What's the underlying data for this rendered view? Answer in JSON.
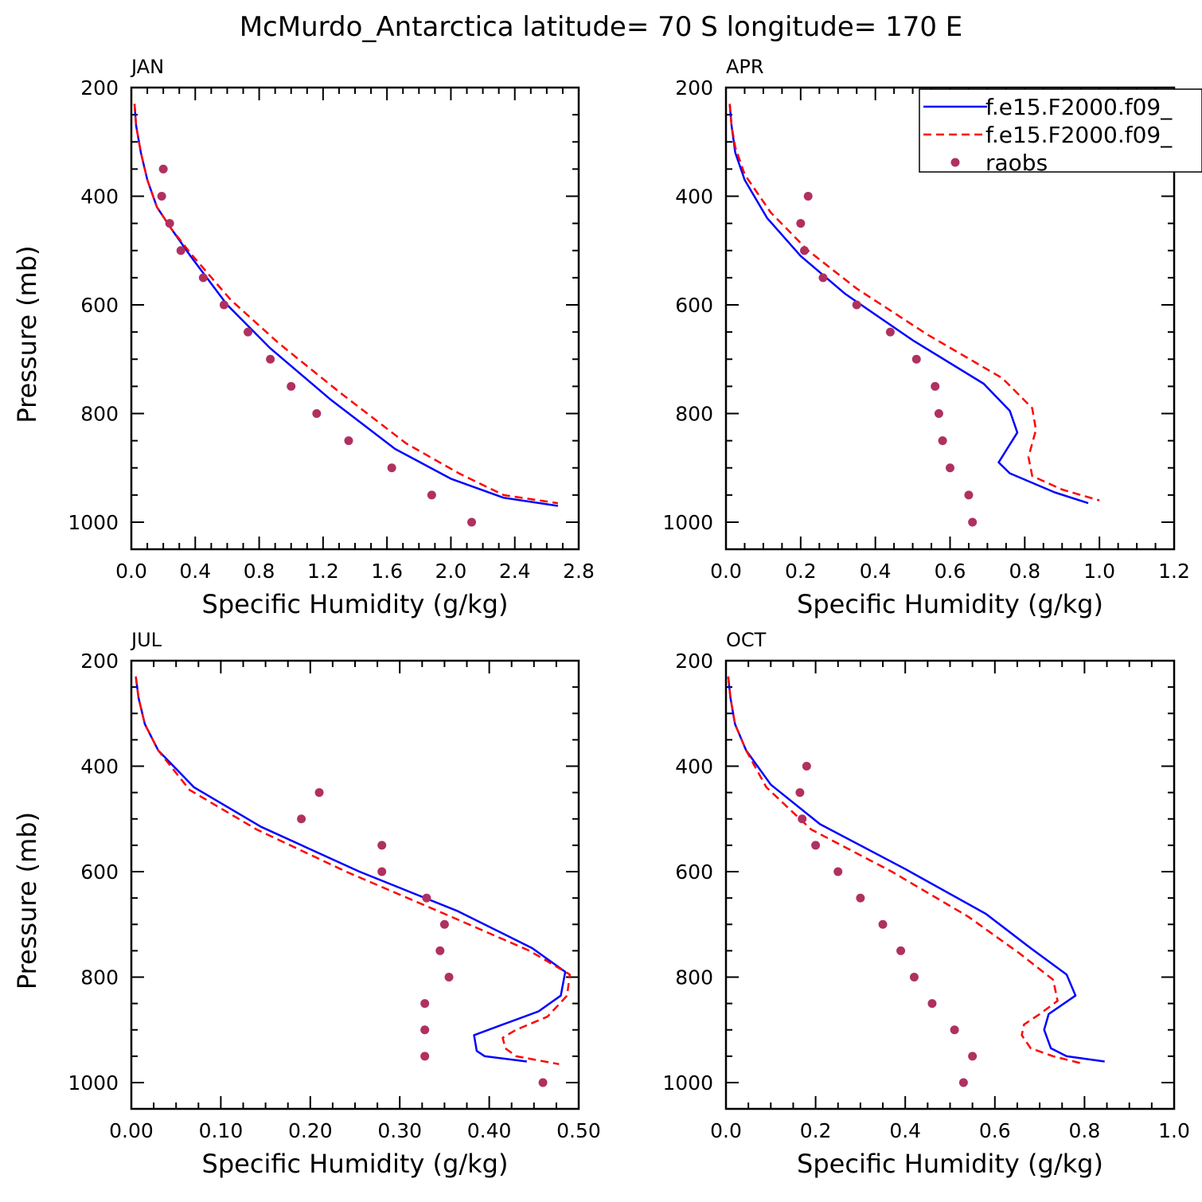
{
  "title": "McMurdo_Antarctica  latitude= 70 S longitude= 170 E",
  "legend": {
    "position": "top-right",
    "entries": [
      {
        "label": "f.e15.F2000.f09_",
        "style": "solid",
        "color": "#0000ff"
      },
      {
        "label": "f.e15.F2000.f09_",
        "style": "dashed",
        "color": "#ff0000"
      },
      {
        "label": "raobs",
        "style": "dot",
        "color": "#b03060"
      }
    ]
  },
  "chart_data": [
    {
      "type": "line",
      "panel": "JAN",
      "xlabel": "Specific Humidity (g/kg)",
      "ylabel": "Pressure (mb)",
      "xlim": [
        0,
        2.8
      ],
      "ylim": [
        200,
        1025
      ],
      "xticks": [
        "0.0",
        "0.4",
        "0.8",
        "1.2",
        "1.6",
        "2.0",
        "2.4",
        "2.8"
      ],
      "xtick_values": [
        0,
        0.4,
        0.8,
        1.2,
        1.6,
        2.0,
        2.4,
        2.8
      ],
      "yticks": [
        "200",
        "400",
        "600",
        "800",
        "1000"
      ],
      "ytick_values": [
        200,
        400,
        600,
        800,
        1000
      ],
      "series": [
        {
          "name": "f.e15.F2000.f09_",
          "style": "solid",
          "color": "#0000ff",
          "points": [
            [
              0.02,
              230
            ],
            [
              0.03,
              270
            ],
            [
              0.06,
              320
            ],
            [
              0.1,
              370
            ],
            [
              0.16,
              420
            ],
            [
              0.25,
              460
            ],
            [
              0.37,
              510
            ],
            [
              0.6,
              600
            ],
            [
              0.87,
              680
            ],
            [
              1.25,
              775
            ],
            [
              1.65,
              865
            ],
            [
              2.0,
              920
            ],
            [
              2.33,
              955
            ],
            [
              2.67,
              970
            ]
          ]
        },
        {
          "name": "f.e15.F2000.f09_",
          "style": "dashed",
          "color": "#ff0000",
          "points": [
            [
              0.02,
              230
            ],
            [
              0.03,
              270
            ],
            [
              0.06,
              320
            ],
            [
              0.1,
              370
            ],
            [
              0.16,
              420
            ],
            [
              0.25,
              460
            ],
            [
              0.37,
              505
            ],
            [
              0.62,
              590
            ],
            [
              0.92,
              670
            ],
            [
              1.3,
              760
            ],
            [
              1.72,
              855
            ],
            [
              2.05,
              910
            ],
            [
              2.33,
              950
            ],
            [
              2.67,
              965
            ]
          ]
        },
        {
          "name": "raobs",
          "style": "dot",
          "color": "#b03060",
          "points": [
            [
              0.2,
              350
            ],
            [
              0.19,
              400
            ],
            [
              0.24,
              450
            ],
            [
              0.31,
              500
            ],
            [
              0.45,
              550
            ],
            [
              0.58,
              600
            ],
            [
              0.73,
              650
            ],
            [
              0.87,
              700
            ],
            [
              1.0,
              750
            ],
            [
              1.16,
              800
            ],
            [
              1.36,
              850
            ],
            [
              1.63,
              900
            ],
            [
              1.88,
              950
            ],
            [
              2.13,
              1000
            ]
          ]
        }
      ]
    },
    {
      "type": "line",
      "panel": "APR",
      "xlabel": "Specific Humidity (g/kg)",
      "ylabel": "",
      "xlim": [
        0,
        1.2
      ],
      "ylim": [
        200,
        1025
      ],
      "xticks": [
        "0.0",
        "0.2",
        "0.4",
        "0.6",
        "0.8",
        "1.0",
        "1.2"
      ],
      "xtick_values": [
        0,
        0.2,
        0.4,
        0.6,
        0.8,
        1.0,
        1.2
      ],
      "yticks": [
        "200",
        "400",
        "600",
        "800",
        "1000"
      ],
      "ytick_values": [
        200,
        400,
        600,
        800,
        1000
      ],
      "series": [
        {
          "name": "f.e15.F2000.f09_",
          "style": "solid",
          "color": "#0000ff",
          "points": [
            [
              0.01,
              230
            ],
            [
              0.015,
              270
            ],
            [
              0.025,
              320
            ],
            [
              0.05,
              370
            ],
            [
              0.11,
              440
            ],
            [
              0.2,
              510
            ],
            [
              0.32,
              580
            ],
            [
              0.5,
              665
            ],
            [
              0.69,
              745
            ],
            [
              0.76,
              795
            ],
            [
              0.78,
              835
            ],
            [
              0.73,
              890
            ],
            [
              0.76,
              910
            ],
            [
              0.88,
              945
            ],
            [
              0.97,
              965
            ]
          ]
        },
        {
          "name": "f.e15.F2000.f09_",
          "style": "dashed",
          "color": "#ff0000",
          "points": [
            [
              0.01,
              230
            ],
            [
              0.015,
              270
            ],
            [
              0.025,
              310
            ],
            [
              0.05,
              360
            ],
            [
              0.12,
              430
            ],
            [
              0.22,
              500
            ],
            [
              0.35,
              570
            ],
            [
              0.54,
              655
            ],
            [
              0.74,
              735
            ],
            [
              0.82,
              790
            ],
            [
              0.83,
              830
            ],
            [
              0.81,
              880
            ],
            [
              0.82,
              915
            ],
            [
              0.9,
              940
            ],
            [
              1.0,
              960
            ]
          ]
        },
        {
          "name": "raobs",
          "style": "dot",
          "color": "#b03060",
          "points": [
            [
              0.22,
              400
            ],
            [
              0.2,
              450
            ],
            [
              0.21,
              500
            ],
            [
              0.26,
              550
            ],
            [
              0.35,
              600
            ],
            [
              0.44,
              650
            ],
            [
              0.51,
              700
            ],
            [
              0.56,
              750
            ],
            [
              0.57,
              800
            ],
            [
              0.58,
              850
            ],
            [
              0.6,
              900
            ],
            [
              0.65,
              950
            ],
            [
              0.66,
              1000
            ]
          ]
        }
      ]
    },
    {
      "type": "line",
      "panel": "JUL",
      "xlabel": "Specific Humidity (g/kg)",
      "ylabel": "Pressure (mb)",
      "xlim": [
        0,
        0.5
      ],
      "ylim": [
        200,
        1025
      ],
      "xticks": [
        "0.00",
        "0.10",
        "0.20",
        "0.30",
        "0.40",
        "0.50"
      ],
      "xtick_values": [
        0,
        0.1,
        0.2,
        0.3,
        0.4,
        0.5
      ],
      "yticks": [
        "200",
        "400",
        "600",
        "800",
        "1000"
      ],
      "ytick_values": [
        200,
        400,
        600,
        800,
        1000
      ],
      "series": [
        {
          "name": "f.e15.F2000.f09_",
          "style": "solid",
          "color": "#0000ff",
          "points": [
            [
              0.005,
              230
            ],
            [
              0.008,
              270
            ],
            [
              0.015,
              320
            ],
            [
              0.03,
              370
            ],
            [
              0.07,
              440
            ],
            [
              0.145,
              515
            ],
            [
              0.255,
              600
            ],
            [
              0.365,
              675
            ],
            [
              0.448,
              745
            ],
            [
              0.485,
              790
            ],
            [
              0.48,
              835
            ],
            [
              0.455,
              865
            ],
            [
              0.415,
              890
            ],
            [
              0.383,
              910
            ],
            [
              0.386,
              940
            ],
            [
              0.395,
              950
            ],
            [
              0.442,
              960
            ]
          ]
        },
        {
          "name": "f.e15.F2000.f09_",
          "style": "dashed",
          "color": "#ff0000",
          "points": [
            [
              0.005,
              230
            ],
            [
              0.008,
              270
            ],
            [
              0.015,
              320
            ],
            [
              0.03,
              370
            ],
            [
              0.065,
              445
            ],
            [
              0.14,
              520
            ],
            [
              0.24,
              600
            ],
            [
              0.35,
              680
            ],
            [
              0.445,
              750
            ],
            [
              0.49,
              795
            ],
            [
              0.487,
              835
            ],
            [
              0.465,
              875
            ],
            [
              0.43,
              900
            ],
            [
              0.415,
              915
            ],
            [
              0.418,
              935
            ],
            [
              0.43,
              950
            ],
            [
              0.478,
              965
            ]
          ]
        },
        {
          "name": "raobs",
          "style": "dot",
          "color": "#b03060",
          "points": [
            [
              0.21,
              450
            ],
            [
              0.19,
              500
            ],
            [
              0.28,
              550
            ],
            [
              0.28,
              600
            ],
            [
              0.33,
              650
            ],
            [
              0.35,
              700
            ],
            [
              0.345,
              750
            ],
            [
              0.355,
              800
            ],
            [
              0.328,
              850
            ],
            [
              0.328,
              900
            ],
            [
              0.328,
              950
            ],
            [
              0.46,
              1000
            ]
          ]
        }
      ]
    },
    {
      "type": "line",
      "panel": "OCT",
      "xlabel": "Specific Humidity (g/kg)",
      "ylabel": "",
      "xlim": [
        0,
        1.0
      ],
      "ylim": [
        200,
        1025
      ],
      "xticks": [
        "0.0",
        "0.2",
        "0.4",
        "0.6",
        "0.8",
        "1.0"
      ],
      "xtick_values": [
        0,
        0.2,
        0.4,
        0.6,
        0.8,
        1.0
      ],
      "yticks": [
        "200",
        "400",
        "600",
        "800",
        "1000"
      ],
      "ytick_values": [
        200,
        400,
        600,
        800,
        1000
      ],
      "series": [
        {
          "name": "f.e15.F2000.f09_",
          "style": "solid",
          "color": "#0000ff",
          "points": [
            [
              0.005,
              230
            ],
            [
              0.01,
              270
            ],
            [
              0.02,
              320
            ],
            [
              0.045,
              370
            ],
            [
              0.1,
              435
            ],
            [
              0.21,
              510
            ],
            [
              0.4,
              595
            ],
            [
              0.58,
              680
            ],
            [
              0.68,
              745
            ],
            [
              0.76,
              795
            ],
            [
              0.78,
              835
            ],
            [
              0.72,
              870
            ],
            [
              0.71,
              900
            ],
            [
              0.725,
              935
            ],
            [
              0.76,
              950
            ],
            [
              0.845,
              960
            ]
          ]
        },
        {
          "name": "f.e15.F2000.f09_",
          "style": "dashed",
          "color": "#ff0000",
          "points": [
            [
              0.005,
              230
            ],
            [
              0.01,
              270
            ],
            [
              0.02,
              320
            ],
            [
              0.045,
              370
            ],
            [
              0.09,
              440
            ],
            [
              0.19,
              520
            ],
            [
              0.37,
              600
            ],
            [
              0.54,
              685
            ],
            [
              0.655,
              755
            ],
            [
              0.73,
              805
            ],
            [
              0.74,
              845
            ],
            [
              0.7,
              870
            ],
            [
              0.665,
              890
            ],
            [
              0.66,
              910
            ],
            [
              0.68,
              935
            ],
            [
              0.73,
              950
            ],
            [
              0.8,
              965
            ]
          ]
        },
        {
          "name": "raobs",
          "style": "dot",
          "color": "#b03060",
          "points": [
            [
              0.18,
              400
            ],
            [
              0.165,
              450
            ],
            [
              0.17,
              500
            ],
            [
              0.2,
              550
            ],
            [
              0.25,
              600
            ],
            [
              0.3,
              650
            ],
            [
              0.35,
              700
            ],
            [
              0.39,
              750
            ],
            [
              0.42,
              800
            ],
            [
              0.46,
              850
            ],
            [
              0.51,
              900
            ],
            [
              0.55,
              950
            ],
            [
              0.53,
              1000
            ]
          ]
        }
      ]
    }
  ]
}
